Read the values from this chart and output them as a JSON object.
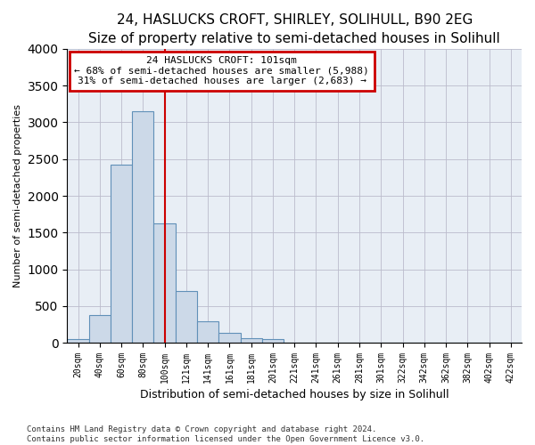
{
  "title": "24, HASLUCKS CROFT, SHIRLEY, SOLIHULL, B90 2EG",
  "subtitle": "Size of property relative to semi-detached houses in Solihull",
  "xlabel": "Distribution of semi-detached houses by size in Solihull",
  "ylabel": "Number of semi-detached properties",
  "footnote1": "Contains HM Land Registry data © Crown copyright and database right 2024.",
  "footnote2": "Contains public sector information licensed under the Open Government Licence v3.0.",
  "annotation_title": "24 HASLUCKS CROFT: 101sqm",
  "annotation_line2": "← 68% of semi-detached houses are smaller (5,988)",
  "annotation_line3": "31% of semi-detached houses are larger (2,683) →",
  "bar_color": "#ccd9e8",
  "bar_edge_color": "#6090b8",
  "bg_color": "#e8eef5",
  "highlight_line_color": "#cc0000",
  "annotation_box_edge": "#cc0000",
  "categories": [
    "20sqm",
    "40sqm",
    "60sqm",
    "80sqm",
    "100sqm",
    "121sqm",
    "141sqm",
    "161sqm",
    "181sqm",
    "201sqm",
    "221sqm",
    "241sqm",
    "261sqm",
    "281sqm",
    "301sqm",
    "322sqm",
    "342sqm",
    "362sqm",
    "382sqm",
    "402sqm",
    "422sqm"
  ],
  "values": [
    50,
    380,
    2420,
    3150,
    1630,
    700,
    290,
    130,
    60,
    50,
    0,
    0,
    0,
    0,
    0,
    0,
    0,
    0,
    0,
    0,
    0
  ],
  "ylim": [
    0,
    4000
  ],
  "property_bin_index": 4,
  "title_fontsize": 11,
  "subtitle_fontsize": 9,
  "tick_fontsize": 7,
  "ylabel_fontsize": 8,
  "xlabel_fontsize": 9,
  "annot_fontsize": 8
}
